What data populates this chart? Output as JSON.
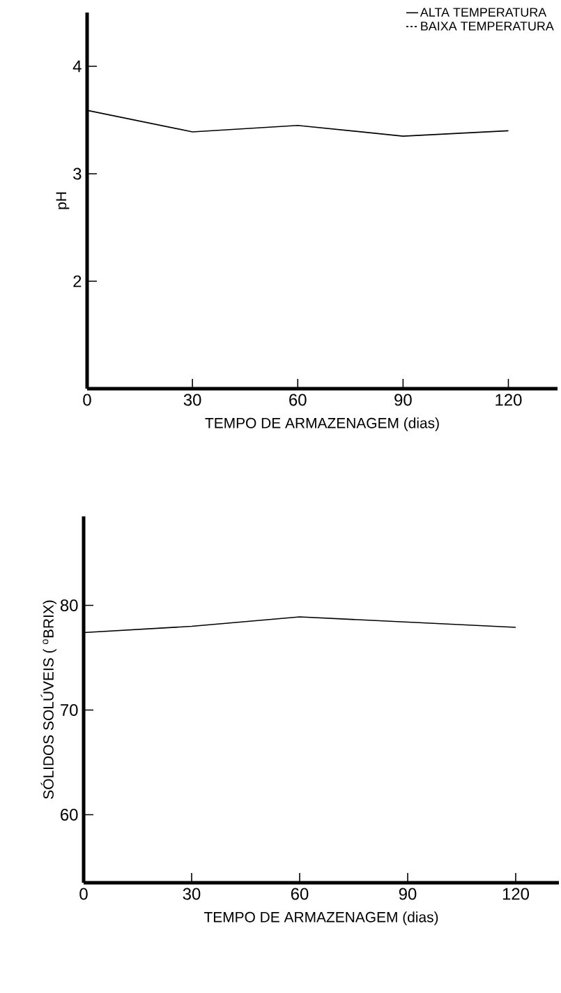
{
  "chart_data": [
    {
      "type": "line",
      "xlabel": "TEMPO DE ARMAZENAGEM (dias)",
      "ylabel": "pH",
      "x": [
        0,
        30,
        60,
        90,
        120
      ],
      "xlim": [
        0,
        134
      ],
      "ylim": [
        1,
        4.5
      ],
      "xticks": [
        0,
        30,
        60,
        90,
        120
      ],
      "yticks": [
        2,
        3,
        4
      ],
      "grid": false,
      "legend": "top right",
      "marker": "none",
      "series": [
        {
          "name": "ALTA TEMPERATURA",
          "color": "#000000",
          "line_style": "solid",
          "values": [
            3.59,
            3.39,
            3.45,
            3.35,
            3.4
          ]
        },
        {
          "name": "BAIXA TEMPERATURA",
          "color": "#000000",
          "line_style": "dashed",
          "values": [
            null,
            null,
            null,
            null,
            null
          ]
        }
      ]
    },
    {
      "type": "line",
      "xlabel": "TEMPO DE ARMAZENAGEM (dias)",
      "ylabel": "SÓLIDOS SOLÚVEIS ( $^{o}$BRIX)",
      "x": [
        0,
        30,
        60,
        120
      ],
      "xlim": [
        0,
        132
      ],
      "ylim": [
        53.5,
        88.5
      ],
      "xticks": [
        0,
        30,
        60,
        90,
        120
      ],
      "yticks": [
        60,
        70,
        80
      ],
      "grid": false,
      "legend": false,
      "marker": "none",
      "series": [
        {
          "color": "#000000",
          "line_style": "solid",
          "values": [
            77.4,
            78.0,
            78.9,
            77.9
          ]
        }
      ]
    }
  ]
}
